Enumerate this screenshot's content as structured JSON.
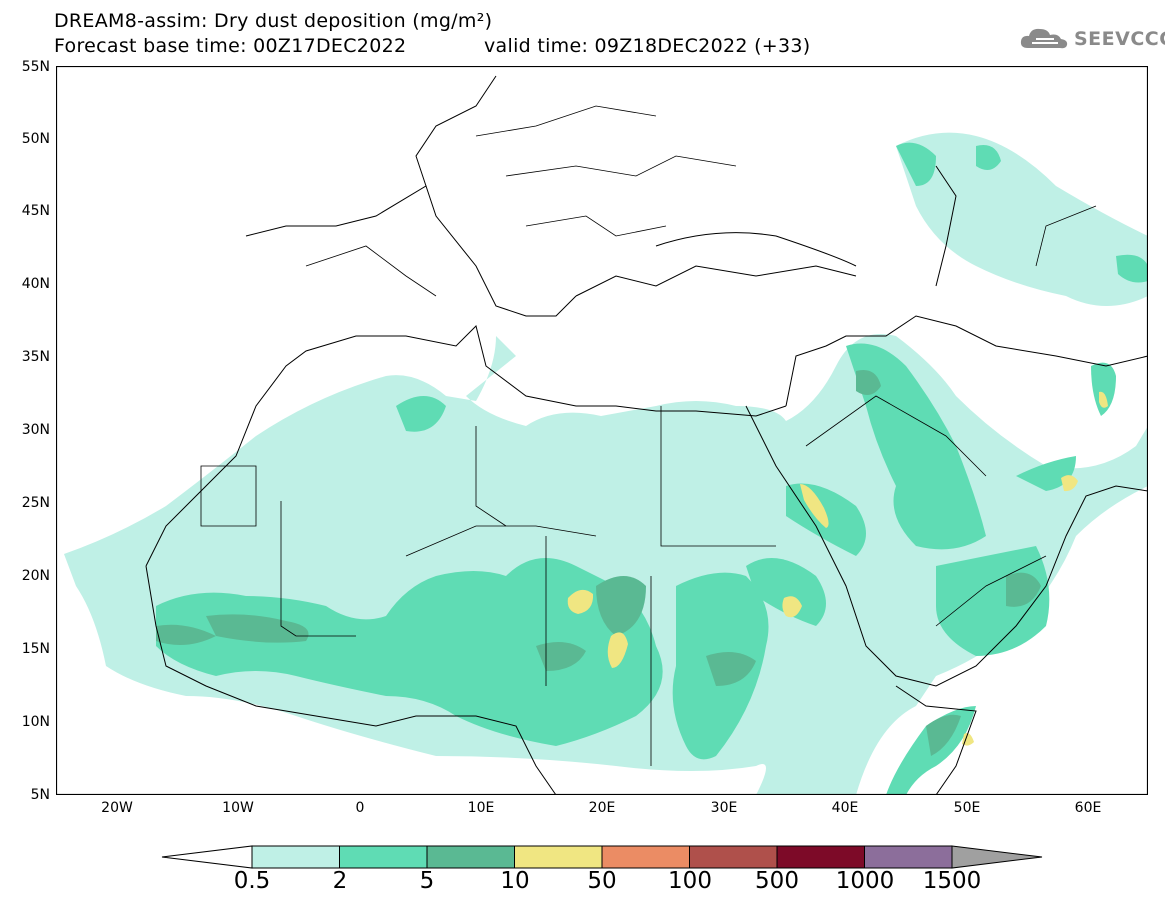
{
  "header": {
    "title_line1": "DREAM8-assim: Dry dust deposition (mg/m²)",
    "base_time": "Forecast base time: 00Z17DEC2022",
    "valid_time": "valid time: 09Z18DEC2022 (+33)",
    "logo_text": "SEEVCCC",
    "logo_icon": "cloud-icon"
  },
  "map": {
    "lon_range": [
      -25,
      65
    ],
    "lat_range": [
      5,
      55
    ],
    "lat_ticks": [
      "55N",
      "50N",
      "45N",
      "40N",
      "35N",
      "30N",
      "25N",
      "20N",
      "15N",
      "10N",
      "5N"
    ],
    "lon_ticks": [
      "20W",
      "10W",
      "0",
      "10E",
      "20E",
      "30E",
      "40E",
      "50E",
      "60E"
    ]
  },
  "colorbar": {
    "labels": [
      "0.5",
      "2",
      "5",
      "10",
      "50",
      "100",
      "500",
      "1000",
      "1500"
    ],
    "colors": [
      "#bff0e6",
      "#5fdcb4",
      "#5ab993",
      "#f0e682",
      "#eb8c64",
      "#af504b",
      "#7d0a28",
      "#8c6e9b",
      "#a0a0a0"
    ]
  },
  "colors": {
    "level1": "#bff0e6",
    "level2": "#5fdcb4",
    "level3": "#5ab993",
    "level4": "#f0e682",
    "borders": "#000000",
    "logo": "#8a8a8a"
  }
}
